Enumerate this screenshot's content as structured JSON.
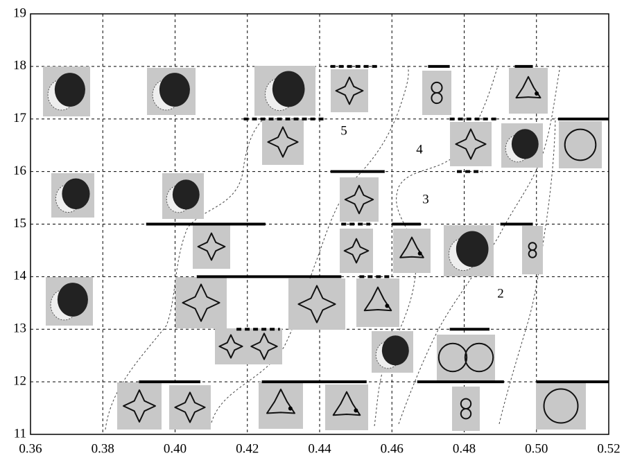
{
  "chart_data": {
    "type": "range",
    "xlim": [
      0.36,
      0.52
    ],
    "xticks": [
      0.36,
      0.38,
      {
        "value": 0.4,
        "label": "0.40"
      },
      0.42,
      0.44,
      0.46,
      0.48,
      {
        "value": 0.5,
        "label": "0.50"
      },
      0.52
    ],
    "ylim": [
      11,
      19
    ],
    "yticks": [
      11,
      12,
      13,
      14,
      15,
      16,
      17,
      18,
      19
    ],
    "grid": true,
    "color": "#000000",
    "segments": [
      {
        "y": 18,
        "x": [
          0.443,
          0.456
        ],
        "style": "dotted"
      },
      {
        "y": 18,
        "x": [
          0.47,
          0.476
        ],
        "style": "solid"
      },
      {
        "y": 18,
        "x": [
          0.494,
          0.499
        ],
        "style": "solid"
      },
      {
        "y": 17,
        "x": [
          0.419,
          0.442
        ],
        "style": "dotted"
      },
      {
        "y": 17,
        "x": [
          0.476,
          0.489
        ],
        "style": "dotted"
      },
      {
        "y": 17,
        "x": [
          0.506,
          0.52
        ],
        "style": "solid"
      },
      {
        "y": 16,
        "x": [
          0.443,
          0.458
        ],
        "style": "solid"
      },
      {
        "y": 16,
        "x": [
          0.478,
          0.485
        ],
        "style": "dotted"
      },
      {
        "y": 15,
        "x": [
          0.392,
          0.425
        ],
        "style": "solid"
      },
      {
        "y": 15,
        "x": [
          0.446,
          0.454
        ],
        "style": "dotted"
      },
      {
        "y": 15,
        "x": [
          0.46,
          0.468
        ],
        "style": "solid"
      },
      {
        "y": 15,
        "x": [
          0.49,
          0.499
        ],
        "style": "solid"
      },
      {
        "y": 14,
        "x": [
          0.406,
          0.446
        ],
        "style": "solid"
      },
      {
        "y": 14,
        "x": [
          0.451,
          0.46
        ],
        "style": "dotted"
      },
      {
        "y": 13,
        "x": [
          0.417,
          0.429
        ],
        "style": "dotted"
      },
      {
        "y": 13,
        "x": [
          0.476,
          0.487
        ],
        "style": "solid"
      },
      {
        "y": 12,
        "x": [
          0.39,
          0.407
        ],
        "style": "solid"
      },
      {
        "y": 12,
        "x": [
          0.424,
          0.453
        ],
        "style": "solid"
      },
      {
        "y": 12,
        "x": [
          0.467,
          0.491
        ],
        "style": "solid"
      },
      {
        "y": 12,
        "x": [
          0.5,
          0.52
        ],
        "style": "solid"
      }
    ],
    "annotations": [
      "5",
      "4",
      "3",
      "2"
    ]
  }
}
